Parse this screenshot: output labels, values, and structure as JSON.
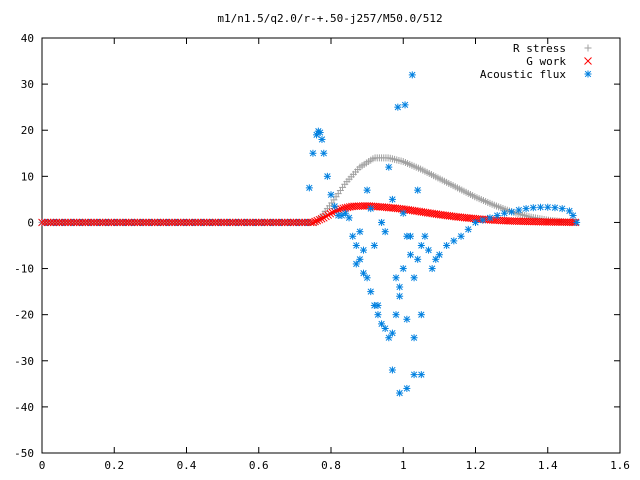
{
  "chart_data": {
    "type": "scatter",
    "title": "m1/n1.5/q2.0/r-+.50-j257/M50.0/512",
    "xlabel": "",
    "ylabel": "",
    "xlim": [
      0,
      1.6
    ],
    "ylim": [
      -50,
      40
    ],
    "x_ticks": [
      "0",
      "0.2",
      "0.4",
      "0.6",
      "0.8",
      "1",
      "1.2",
      "1.4",
      "1.6"
    ],
    "y_ticks": [
      "40",
      "30",
      "20",
      "10",
      "0",
      "-10",
      "-20",
      "-30",
      "-40",
      "-50"
    ],
    "grid": false,
    "legend_position": "top-right",
    "series": [
      {
        "name": "R stress",
        "marker": "+",
        "color": "#a0a0a0",
        "x": [
          0.76,
          0.8,
          0.84,
          0.88,
          0.92,
          0.96,
          1.0,
          1.05,
          1.1,
          1.15,
          1.2,
          1.25,
          1.3,
          1.35,
          1.4,
          1.45,
          1.48
        ],
        "y": [
          0,
          4,
          8.5,
          12,
          14,
          14,
          13.2,
          11.5,
          9.5,
          7.5,
          5.5,
          3.8,
          2.3,
          1.2,
          0.5,
          0.1,
          0
        ]
      },
      {
        "name": "G work",
        "marker": "x",
        "color": "#ff0000",
        "x": [
          0.75,
          0.78,
          0.8,
          0.83,
          0.86,
          0.9,
          0.95,
          1.0,
          1.05,
          1.1,
          1.15,
          1.2,
          1.25,
          1.3,
          1.35,
          1.4,
          1.45,
          1.48
        ],
        "y": [
          0,
          1.0,
          2.0,
          3.0,
          3.5,
          3.6,
          3.3,
          2.9,
          2.3,
          1.7,
          1.2,
          0.8,
          0.5,
          0.3,
          0.2,
          0.1,
          0.05,
          0
        ]
      },
      {
        "name": "Acoustic flux",
        "marker": "*",
        "color": "#0080e0",
        "x": [
          0.74,
          0.75,
          0.76,
          0.765,
          0.77,
          0.775,
          0.78,
          0.79,
          0.8,
          0.81,
          0.82,
          0.83,
          0.84,
          0.85,
          0.86,
          0.87,
          0.88,
          0.89,
          0.9,
          0.91,
          0.92,
          0.93,
          0.94,
          0.95,
          0.96,
          0.97,
          0.98,
          0.99,
          1.0,
          1.01,
          1.02,
          1.03,
          1.04,
          1.05,
          1.06,
          1.07,
          1.08,
          1.09,
          1.1,
          1.12,
          1.14,
          1.16,
          1.18,
          1.2,
          1.22,
          1.24,
          1.26,
          1.28,
          1.3,
          1.32,
          1.34,
          1.36,
          1.38,
          1.4,
          1.42,
          1.44,
          1.46,
          1.47,
          1.48,
          0.88,
          0.9,
          0.92,
          0.94,
          0.96,
          0.98,
          1.0,
          1.02,
          1.04,
          0.87,
          0.89,
          0.91,
          0.93,
          0.95,
          0.97,
          0.99,
          1.01,
          1.03,
          1.05,
          0.985,
          1.005,
          1.025,
          0.99,
          1.03,
          1.05,
          0.97,
          1.01
        ],
        "y": [
          7.5,
          15,
          19,
          19.8,
          19.5,
          18,
          15,
          10,
          6,
          3.5,
          1.5,
          1.5,
          2,
          1,
          -3,
          -5,
          -8,
          -11,
          -12,
          -15,
          -18,
          -20,
          -22,
          -23,
          -25,
          -24,
          -20,
          -14,
          -10,
          -3,
          -7,
          -12,
          -8,
          -5,
          -3,
          -6,
          -10,
          -8,
          -7,
          -5,
          -4,
          -3,
          -1.5,
          0,
          0.5,
          1,
          1.5,
          2,
          2.3,
          2.7,
          3,
          3.2,
          3.3,
          3.3,
          3.2,
          3,
          2.5,
          1.5,
          0,
          -2,
          7,
          -5,
          0,
          12,
          -12,
          2,
          -3,
          7,
          -9,
          -6,
          3,
          -18,
          -2,
          5,
          -16,
          -21,
          -25,
          -20,
          25,
          25.5,
          32,
          -37,
          -33,
          -33,
          -32,
          -36
        ]
      }
    ]
  }
}
